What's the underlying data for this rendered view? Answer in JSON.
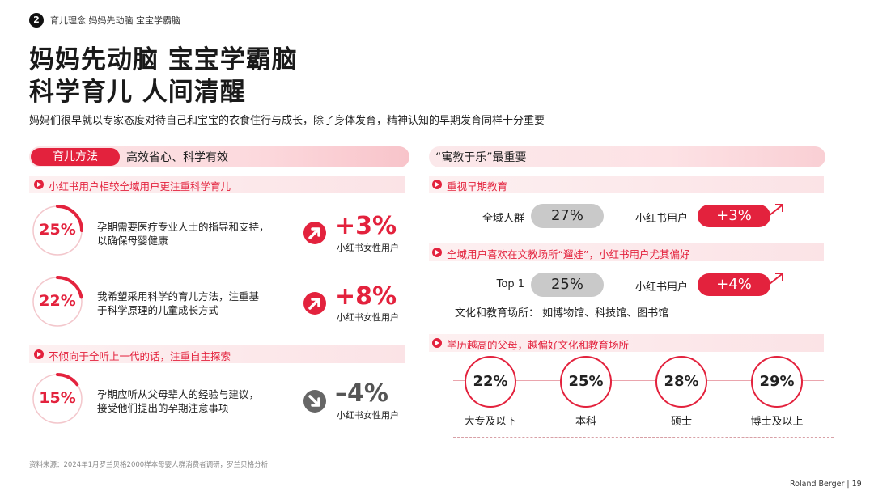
{
  "header": {
    "chapter_number": "2",
    "breadcrumb": "育儿理念   妈妈先动脑 宝宝学霸脑",
    "title_line1": "妈妈先动脑 宝宝学霸脑",
    "title_line2": "科学育儿 人间清醒",
    "subtitle": "妈妈们很早就以专家态度对待自己和宝宝的衣食住行与成长，除了身体发育，精神认知的早期发育同样十分重要"
  },
  "left": {
    "pill": "育儿方法",
    "bar_text": "高效省心、科学有效",
    "section1": "小红书用户相较全域用户更注重科学育儿",
    "section2": "不倾向于全听上一代的话，注重自主探索",
    "stats": [
      {
        "value": "25%",
        "fraction": 0.25,
        "desc_line1": "孕期需要医疗专业人士的指导和支持，",
        "desc_line2": "以确保母婴健康",
        "delta": "+3%",
        "delta_sub": "小红书女性用户"
      },
      {
        "value": "22%",
        "fraction": 0.22,
        "desc_line1": "我希望采用科学的育儿方法，注重基",
        "desc_line2": "于科学原理的儿童成长方式",
        "delta": "+8%",
        "delta_sub": "小红书女性用户"
      },
      {
        "value": "15%",
        "fraction": 0.15,
        "desc_line1": "孕期应听从父母辈人的经验与建议，",
        "desc_line2": "接受他们提出的孕期注意事项",
        "delta": "–4%",
        "delta_sub": "小红书女性用户"
      }
    ]
  },
  "right": {
    "bar_text": "“寓教于乐”最重要",
    "section1": "重视早期教育",
    "row1": {
      "label": "全域人群",
      "value": "27%",
      "xhs_label": "小红书用户",
      "delta": "+3%"
    },
    "section2": "全域用户喜欢在文教场所“遛娃”，小红书用户尤其偏好",
    "row2": {
      "label": "Top 1",
      "value": "25%",
      "xhs_label": "小红书用户",
      "delta": "+4%"
    },
    "venues": "文化和教育场所：  如博物馆、科技馆、图书馆",
    "section3": "学历越高的父母，越偏好文化和教育场所",
    "education": [
      {
        "value": "22%",
        "label": "大专及以下"
      },
      {
        "value": "25%",
        "label": "本科"
      },
      {
        "value": "28%",
        "label": "硕士"
      },
      {
        "value": "29%",
        "label": "博士及以上"
      }
    ]
  },
  "footer": {
    "source": "资料来源：2024年1月罗兰贝格2000样本母婴人群消费者调研，罗兰贝格分析",
    "brand": "Roland Berger   |   19"
  },
  "colors": {
    "accent": "#e3223d",
    "neutral_pill": "#c9c9c9"
  }
}
